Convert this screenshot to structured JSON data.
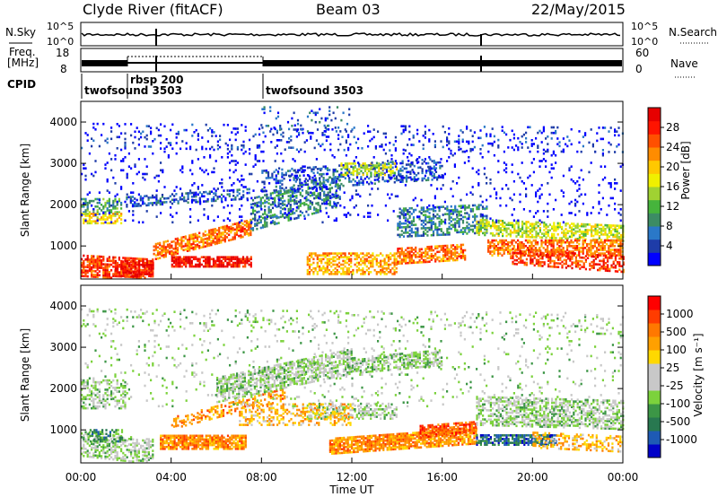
{
  "header": {
    "station": "Clyde River (fitACF)",
    "beam": "Beam 03",
    "date": "22/May/2015"
  },
  "top_panels": {
    "nsky_label": "N.Sky",
    "nsky_ticks": [
      "10^5",
      "10^0"
    ],
    "nsearch_label": "N.Search",
    "nsearch_ticks": [
      "10^5",
      "10^0"
    ],
    "freq_label_1": "Freq.",
    "freq_label_2": "[MHz]",
    "freq_ticks": [
      "18",
      "8"
    ],
    "nave_label": "Nave",
    "nave_ticks": [
      "60",
      "0"
    ],
    "cpid_label": "CPID",
    "cpid_segments": [
      {
        "label": "twofsound 3503",
        "start_h": 0.0
      },
      {
        "label": "rbsp 200",
        "start_h": 1.85
      },
      {
        "label": "twofsound 3503",
        "start_h": 8.05
      }
    ]
  },
  "chart_data": [
    {
      "type": "heatmap",
      "name": "power",
      "ylabel": "Slant Range [km]",
      "yticks": [
        "1000",
        "2000",
        "3000",
        "4000"
      ],
      "ylim": [
        200,
        4500
      ],
      "xlim": [
        0,
        24
      ],
      "colorbar_label": "Power [dB]",
      "colorbar_ticks": [
        "28",
        "24",
        "20",
        "16",
        "12",
        "8",
        "4"
      ],
      "colorbar_colors": [
        "#0000ff",
        "#1e3ca8",
        "#2a78c8",
        "#3c8c64",
        "#46b43c",
        "#a0d232",
        "#f0f000",
        "#ffc800",
        "#ff8c00",
        "#ff5000",
        "#ff1400",
        "#e60000"
      ]
    },
    {
      "type": "heatmap",
      "name": "velocity",
      "ylabel": "Slant Range [km]",
      "yticks": [
        "1000",
        "2000",
        "3000",
        "4000"
      ],
      "ylim": [
        200,
        4500
      ],
      "xlim": [
        0,
        24
      ],
      "colorbar_label": "Velocity [m s⁻¹]",
      "colorbar_ticks": [
        "1000",
        "500",
        "100",
        "25",
        "-25",
        "-100",
        "-500",
        "-1000"
      ],
      "colorbar_colors": [
        "#0000c8",
        "#1e5ab4",
        "#287850",
        "#3c9646",
        "#7cd23c",
        "#c8c8c8",
        "#c8c8c8",
        "#ffd800",
        "#ffa000",
        "#ff7800",
        "#ff3c00",
        "#ff0000"
      ],
      "xlabel": "Time UT",
      "xticks": [
        "00:00",
        "04:00",
        "08:00",
        "12:00",
        "16:00",
        "20:00",
        "00:00"
      ]
    }
  ]
}
